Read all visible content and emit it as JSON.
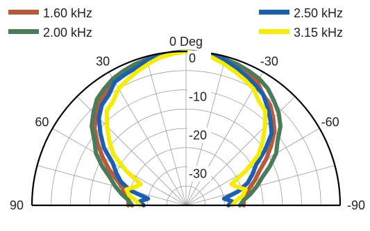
{
  "chart_data": {
    "type": "polar",
    "subtype": "half-polar directivity plot",
    "legend": [
      {
        "name": "1.60 kHz",
        "color": "#b85a3c"
      },
      {
        "name": "2.00 kHz",
        "color": "#4a7c59"
      },
      {
        "name": "2.50 kHz",
        "color": "#1a5fb0"
      },
      {
        "name": "3.15 kHz",
        "color": "#f5ec00"
      }
    ],
    "legend_placement": "top",
    "angle_axis": {
      "title": "0 Deg",
      "range_deg": [
        -90,
        90
      ],
      "labels": [
        {
          "angle": -90,
          "text": "90"
        },
        {
          "angle": -60,
          "text": "60"
        },
        {
          "angle": -30,
          "text": "30"
        },
        {
          "angle": 30,
          "text": "-30"
        },
        {
          "angle": 60,
          "text": "-60"
        },
        {
          "angle": 90,
          "text": "-90"
        }
      ],
      "spoke_step_deg": 15
    },
    "radial_axis": {
      "unit": "dB",
      "range": [
        -40,
        0
      ],
      "labels": [
        {
          "value": 0,
          "text": "0"
        },
        {
          "value": -10,
          "text": "-10"
        },
        {
          "value": -20,
          "text": "-20"
        },
        {
          "value": -30,
          "text": "-30"
        }
      ],
      "ring_step": 5
    },
    "series": [
      {
        "name": "1.60 kHz",
        "color": "#b85a3c",
        "points": [
          [
            -90,
            -25
          ],
          [
            -85,
            -25
          ],
          [
            -80,
            -24
          ],
          [
            -75,
            -23
          ],
          [
            -70,
            -21
          ],
          [
            -65,
            -18
          ],
          [
            -60,
            -15
          ],
          [
            -55,
            -12
          ],
          [
            -50,
            -9
          ],
          [
            -45,
            -7
          ],
          [
            -40,
            -5
          ],
          [
            -35,
            -4
          ],
          [
            -30,
            -3
          ],
          [
            -25,
            -2
          ],
          [
            -20,
            -1.5
          ],
          [
            -15,
            -1
          ],
          [
            -10,
            -0.5
          ],
          [
            -5,
            -0.3
          ],
          [
            0,
            0
          ],
          [
            5,
            -0.3
          ],
          [
            10,
            -0.5
          ],
          [
            15,
            -1
          ],
          [
            20,
            -1.5
          ],
          [
            25,
            -2
          ],
          [
            30,
            -3
          ],
          [
            35,
            -5
          ],
          [
            40,
            -6
          ],
          [
            45,
            -8
          ],
          [
            50,
            -10
          ],
          [
            55,
            -13
          ],
          [
            60,
            -16
          ],
          [
            65,
            -19
          ],
          [
            70,
            -21
          ],
          [
            75,
            -23
          ],
          [
            80,
            -24
          ],
          [
            85,
            -25
          ],
          [
            90,
            -25
          ]
        ]
      },
      {
        "name": "2.00 kHz",
        "color": "#4a7c59",
        "points": [
          [
            -90,
            -26
          ],
          [
            -85,
            -25
          ],
          [
            -80,
            -23
          ],
          [
            -75,
            -21
          ],
          [
            -70,
            -19
          ],
          [
            -65,
            -16
          ],
          [
            -60,
            -13
          ],
          [
            -55,
            -11
          ],
          [
            -50,
            -8
          ],
          [
            -45,
            -6
          ],
          [
            -40,
            -4
          ],
          [
            -35,
            -3
          ],
          [
            -30,
            -2
          ],
          [
            -25,
            -1.5
          ],
          [
            -20,
            -1
          ],
          [
            -15,
            -0.7
          ],
          [
            -10,
            -0.5
          ],
          [
            -5,
            -0.2
          ],
          [
            0,
            0
          ],
          [
            5,
            -0.2
          ],
          [
            10,
            -0.5
          ],
          [
            15,
            -0.7
          ],
          [
            20,
            -1
          ],
          [
            25,
            -1.5
          ],
          [
            30,
            -2
          ],
          [
            35,
            -3
          ],
          [
            40,
            -4.5
          ],
          [
            45,
            -6
          ],
          [
            50,
            -8
          ],
          [
            55,
            -11
          ],
          [
            60,
            -13
          ],
          [
            65,
            -16
          ],
          [
            70,
            -19
          ],
          [
            75,
            -21
          ],
          [
            80,
            -23
          ],
          [
            85,
            -25
          ],
          [
            90,
            -26
          ]
        ]
      },
      {
        "name": "2.50 kHz",
        "color": "#1a5fb0",
        "points": [
          [
            -90,
            -29
          ],
          [
            -85,
            -28
          ],
          [
            -80,
            -30
          ],
          [
            -75,
            -25
          ],
          [
            -70,
            -22
          ],
          [
            -65,
            -20
          ],
          [
            -60,
            -18
          ],
          [
            -55,
            -14
          ],
          [
            -50,
            -11
          ],
          [
            -45,
            -8
          ],
          [
            -40,
            -6
          ],
          [
            -35,
            -5
          ],
          [
            -30,
            -3
          ],
          [
            -25,
            -2.5
          ],
          [
            -20,
            -2
          ],
          [
            -15,
            -1
          ],
          [
            -10,
            -0.5
          ],
          [
            -5,
            -0.3
          ],
          [
            0,
            0
          ],
          [
            5,
            -0.3
          ],
          [
            10,
            -0.5
          ],
          [
            15,
            -1
          ],
          [
            20,
            -2
          ],
          [
            25,
            -3
          ],
          [
            30,
            -4
          ],
          [
            35,
            -5
          ],
          [
            40,
            -7
          ],
          [
            45,
            -9
          ],
          [
            50,
            -11
          ],
          [
            55,
            -15
          ],
          [
            60,
            -19
          ],
          [
            65,
            -21
          ],
          [
            70,
            -23
          ],
          [
            75,
            -26
          ],
          [
            80,
            -30
          ],
          [
            85,
            -28
          ],
          [
            90,
            -29
          ]
        ]
      },
      {
        "name": "3.15 kHz",
        "color": "#f5ec00",
        "points": [
          [
            -90,
            -28
          ],
          [
            -85,
            -27
          ],
          [
            -80,
            -25
          ],
          [
            -75,
            -24
          ],
          [
            -70,
            -26
          ],
          [
            -65,
            -27
          ],
          [
            -60,
            -22
          ],
          [
            -55,
            -17
          ],
          [
            -50,
            -14
          ],
          [
            -45,
            -11
          ],
          [
            -40,
            -8
          ],
          [
            -35,
            -7
          ],
          [
            -30,
            -5
          ],
          [
            -25,
            -4
          ],
          [
            -20,
            -3
          ],
          [
            -15,
            -2
          ],
          [
            -10,
            -1
          ],
          [
            -5,
            -0.5
          ],
          [
            0,
            0
          ],
          [
            5,
            -0.5
          ],
          [
            10,
            -1
          ],
          [
            15,
            -2
          ],
          [
            20,
            -3
          ],
          [
            25,
            -4
          ],
          [
            30,
            -5
          ],
          [
            35,
            -7
          ],
          [
            40,
            -8
          ],
          [
            45,
            -11
          ],
          [
            50,
            -14
          ],
          [
            55,
            -17
          ],
          [
            60,
            -22
          ],
          [
            65,
            -27
          ],
          [
            70,
            -26
          ],
          [
            75,
            -24
          ],
          [
            80,
            -25
          ],
          [
            85,
            -27
          ],
          [
            90,
            -28
          ]
        ]
      }
    ]
  }
}
